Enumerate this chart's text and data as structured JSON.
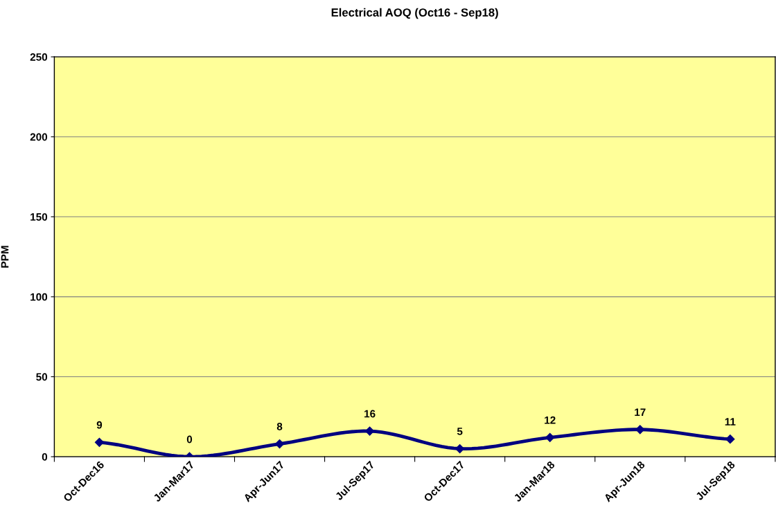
{
  "chart_data": {
    "type": "line",
    "title": "Electrical AOQ (Oct16 - Sep18)",
    "ylabel": "PPM",
    "categories": [
      "Oct-Dec16",
      "Jan-Mar17",
      "Apr-Jun17",
      "Jul-Sep17",
      "Oct-Dec17",
      "Jan-Mar18",
      "Apr-Jun18",
      "Jul-Sep18"
    ],
    "series": [
      {
        "color": "#000080",
        "values": [
          9,
          0,
          8,
          16,
          5,
          12,
          17,
          11
        ]
      }
    ],
    "ylim": [
      0,
      250
    ],
    "yticks": [
      0,
      50,
      100,
      150,
      200,
      250
    ],
    "grid": "y",
    "marker": "diamond",
    "line_style": "solid",
    "data_labels": true,
    "legend": false
  }
}
